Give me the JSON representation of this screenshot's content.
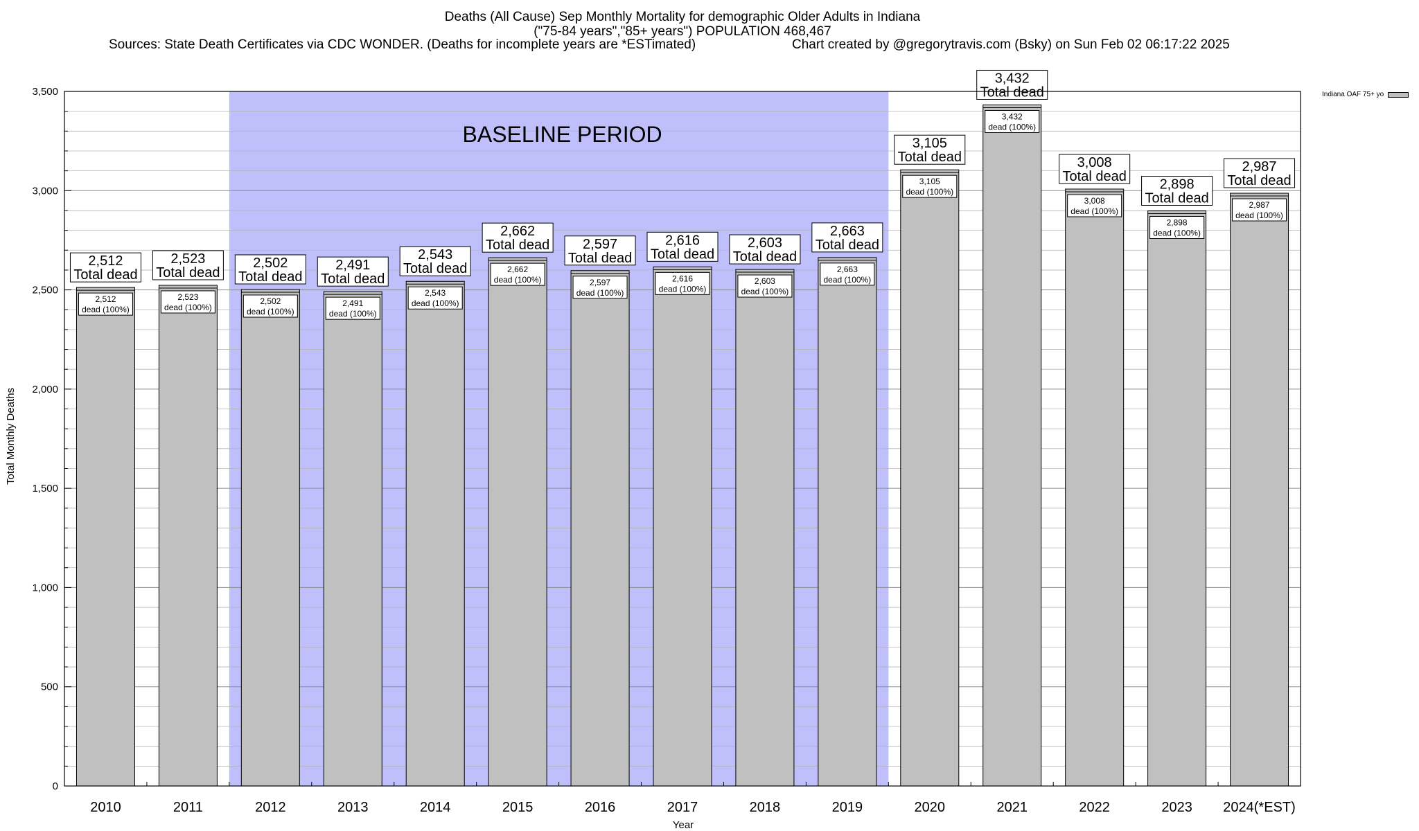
{
  "header": {
    "title_line1": "Deaths (All Cause) Sep Monthly Mortality for demographic Older Adults in Indiana",
    "title_line2": "(\"75-84 years\",\"85+ years\") POPULATION 468,467",
    "sources": "Sources: State Death Certificates via CDC WONDER. (Deaths for incomplete years are *ESTimated)",
    "credit": "Chart created by @gregorytravis.com (Bsky) on Sun Feb 02 06:17:22 2025"
  },
  "legend": {
    "label": "Indiana OAF 75+ yo"
  },
  "colors": {
    "bar": "#c0c0c0",
    "baseline": "#bfbffc",
    "grid": "#b4b4b4"
  },
  "chart_data": {
    "type": "bar",
    "categories": [
      "2010",
      "2011",
      "2012",
      "2013",
      "2014",
      "2015",
      "2016",
      "2017",
      "2018",
      "2019",
      "2020",
      "2021",
      "2022",
      "2023",
      "2024(*EST)"
    ],
    "values": [
      2512,
      2523,
      2502,
      2491,
      2543,
      2662,
      2597,
      2616,
      2603,
      2663,
      3105,
      3432,
      3008,
      2898,
      2987
    ],
    "top_labels": [
      "2,512",
      "2,523",
      "2,502",
      "2,491",
      "2,543",
      "2,662",
      "2,597",
      "2,616",
      "2,603",
      "2,663",
      "3,105",
      "3,432",
      "3,008",
      "2,898",
      "2,987"
    ],
    "top_label_suffix": "Total dead",
    "inner_label_suffix": "dead (100%)",
    "xlabel": "Year",
    "ylabel": "Total Monthly Deaths",
    "ylim": [
      0,
      3500
    ],
    "yticks": [
      0,
      500,
      1000,
      1500,
      2000,
      2500,
      3000,
      3500
    ],
    "ytick_labels": [
      "0",
      "500",
      "1,000",
      "1,500",
      "2,000",
      "2,500",
      "3,000",
      "3,500"
    ],
    "minor_step": 100,
    "grid": true,
    "legend_position": "top-right",
    "baseline_period": {
      "label": "BASELINE PERIOD",
      "from": "2012",
      "to": "2019"
    },
    "series": [
      {
        "name": "Indiana OAF 75+ yo",
        "values": [
          2512,
          2523,
          2502,
          2491,
          2543,
          2662,
          2597,
          2616,
          2603,
          2663,
          3105,
          3432,
          3008,
          2898,
          2987
        ]
      }
    ]
  }
}
